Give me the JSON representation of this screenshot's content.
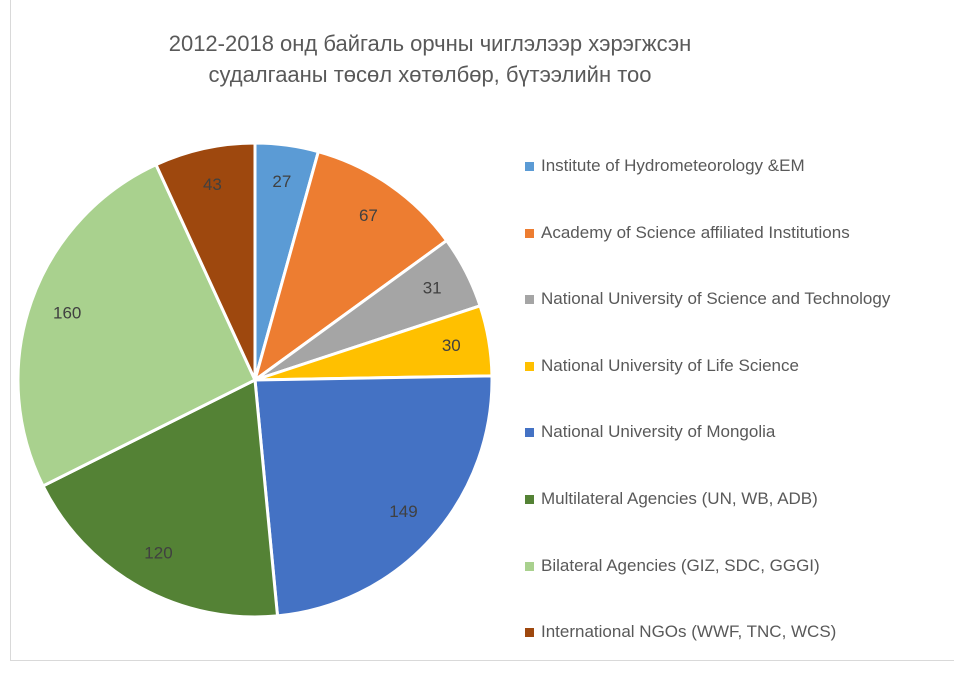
{
  "chart_data": {
    "type": "pie",
    "title": "2012-2018 онд байгаль орчны чиглэлээр хэрэгжсэн судалгааны төсөл хөтөлбөр, бүтээлийн тоо",
    "categories": [
      "Institute of Hydrometeorology &EM",
      "Academy of Science affiliated Institutions",
      "National University of Science and Technology",
      "National University of Life Science",
      "National University of Mongolia",
      "Multilateral Agencies (UN, WB, ADB)",
      "Bilateral Agencies (GIZ, SDC, GGGI)",
      "International NGOs (WWF, TNC, WCS)"
    ],
    "values": [
      27,
      67,
      31,
      30,
      149,
      120,
      160,
      43
    ],
    "colors": [
      "#5b9bd5",
      "#ed7d31",
      "#a5a5a5",
      "#ffc000",
      "#4472c4",
      "#548235",
      "#a9d18e",
      "#9e480e"
    ],
    "legend": "right"
  }
}
